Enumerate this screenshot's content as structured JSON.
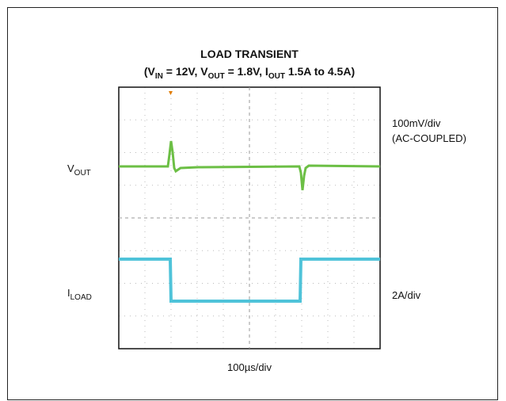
{
  "title": "LOAD TRANSIENT",
  "subtitle": [
    "(V",
    "IN",
    " = 12V, V",
    "OUT",
    " = 1.8V, I",
    "OUT",
    " 1.5A to 4.5A)"
  ],
  "labels": {
    "vout": [
      "V",
      "OUT"
    ],
    "iload": [
      "I",
      "LOAD"
    ],
    "vout_scale": "100mV/div",
    "vout_coupling": "(AC-COUPLED)",
    "iload_scale": "2A/div",
    "time_scale": "100µs/div"
  }
}
